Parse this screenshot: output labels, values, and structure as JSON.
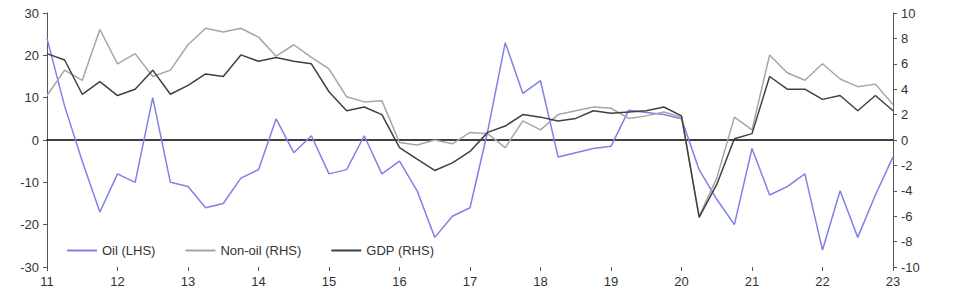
{
  "chart_data": {
    "type": "line",
    "categories": [
      "11",
      null,
      null,
      null,
      "12",
      null,
      null,
      null,
      "13",
      null,
      null,
      null,
      "14",
      null,
      null,
      null,
      "15",
      null,
      null,
      null,
      "16",
      null,
      null,
      null,
      "17",
      null,
      null,
      null,
      "18",
      null,
      null,
      null,
      "19",
      null,
      null,
      null,
      "20",
      null,
      null,
      null,
      "21",
      null,
      null,
      null,
      "22",
      null,
      null,
      null,
      "23"
    ],
    "series": [
      {
        "name": "Oil (LHS)",
        "color": "#8080e6",
        "values": [
          24,
          8,
          -5,
          -17,
          -8,
          -10,
          10,
          -10,
          -11,
          -16,
          -15,
          -9,
          -7,
          5,
          -3,
          1,
          -8,
          -7,
          1,
          -8,
          -5,
          -12,
          -23,
          -18,
          -16,
          2,
          23,
          11,
          14,
          -4,
          -3,
          -2,
          -1.5,
          7,
          6.5,
          6,
          5,
          -7,
          -14,
          -20,
          -2,
          -13,
          -11,
          -8,
          -26,
          -12,
          -23,
          -13,
          -4
        ]
      },
      {
        "name": "Non-oil (RHS)",
        "color": "#a6a6a6",
        "axis": "y2",
        "values": [
          3.5,
          5.5,
          4.7,
          8.7,
          6,
          6.8,
          5,
          5.5,
          7.5,
          8.8,
          8.5,
          8.8,
          8.1,
          6.6,
          7.5,
          6.5,
          5.6,
          3.4,
          3.0,
          3.1,
          -0.2,
          -0.4,
          0,
          -0.3,
          0.6,
          0.5,
          -0.6,
          1.5,
          0.8,
          2,
          2.3,
          2.6,
          2.5,
          1.7,
          1.9,
          2.2,
          1.8,
          -6,
          -3,
          1.8,
          0.8,
          6.7,
          5.3,
          4.7,
          6,
          4.8,
          4.2,
          4.4,
          2.8
        ]
      },
      {
        "name": "GDP (RHS)",
        "color": "#404040",
        "axis": "y2",
        "values": [
          6.8,
          6.3,
          3.6,
          4.6,
          3.5,
          4,
          5.5,
          3.6,
          4.3,
          5.2,
          5.0,
          6.7,
          6.2,
          6.5,
          6.2,
          6.0,
          3.8,
          2.3,
          2.6,
          2.0,
          -0.6,
          -1.5,
          -2.4,
          -1.8,
          -0.9,
          0.6,
          1.1,
          2,
          1.8,
          1.5,
          1.7,
          2.3,
          2.1,
          2.2,
          2.3,
          2.6,
          1.9,
          -6.1,
          -3.5,
          0.1,
          0.5,
          5,
          4,
          4,
          3.2,
          3.5,
          2.3,
          3.5,
          2.3
        ]
      }
    ],
    "ylim": [
      -30,
      30
    ],
    "yticks": [
      -30,
      -20,
      -10,
      0,
      10,
      20,
      30
    ],
    "y2lim": [
      -10,
      10
    ],
    "y2ticks": [
      -10,
      -8,
      -6,
      -4,
      -2,
      0,
      2,
      4,
      6,
      8,
      10
    ],
    "grid": false,
    "legend": "lower left"
  }
}
